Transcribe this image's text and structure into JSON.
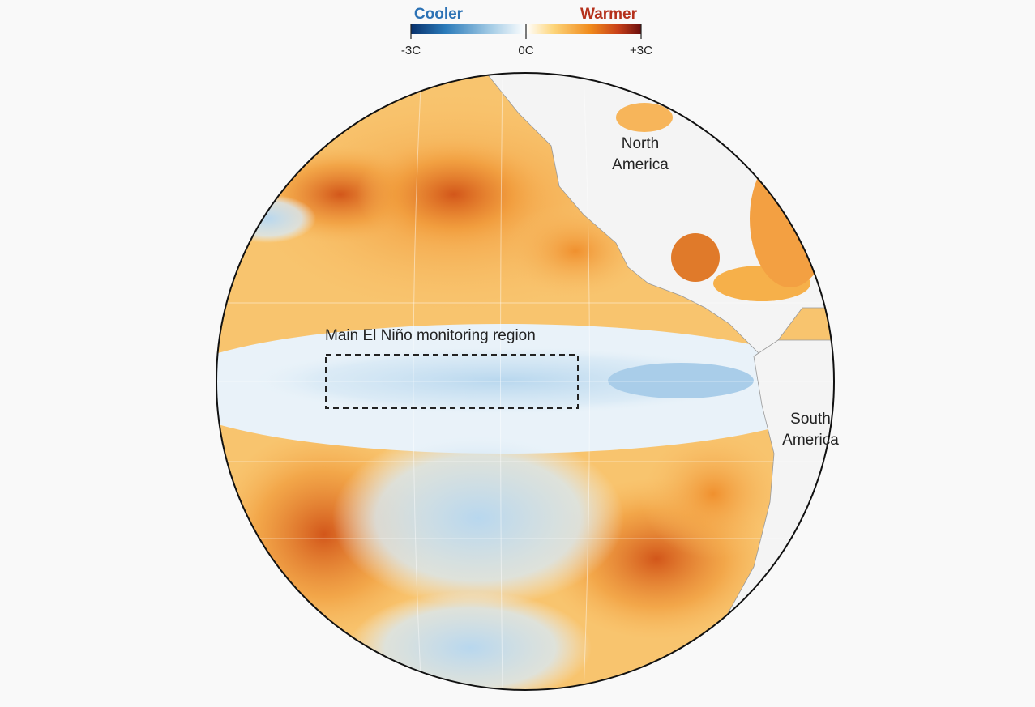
{
  "legend": {
    "cool_label": "Cooler",
    "warm_label": "Warmer",
    "range": [
      -3,
      3
    ],
    "ticks": [
      {
        "value": -3,
        "label": "-3C"
      },
      {
        "value": 0,
        "label": "0C"
      },
      {
        "value": 3,
        "label": "+3C"
      }
    ]
  },
  "map": {
    "labels": {
      "north_america": [
        "North",
        "America"
      ],
      "south_america": [
        "South",
        "America"
      ]
    },
    "region_label": "Main El Niño monitoring region"
  }
}
